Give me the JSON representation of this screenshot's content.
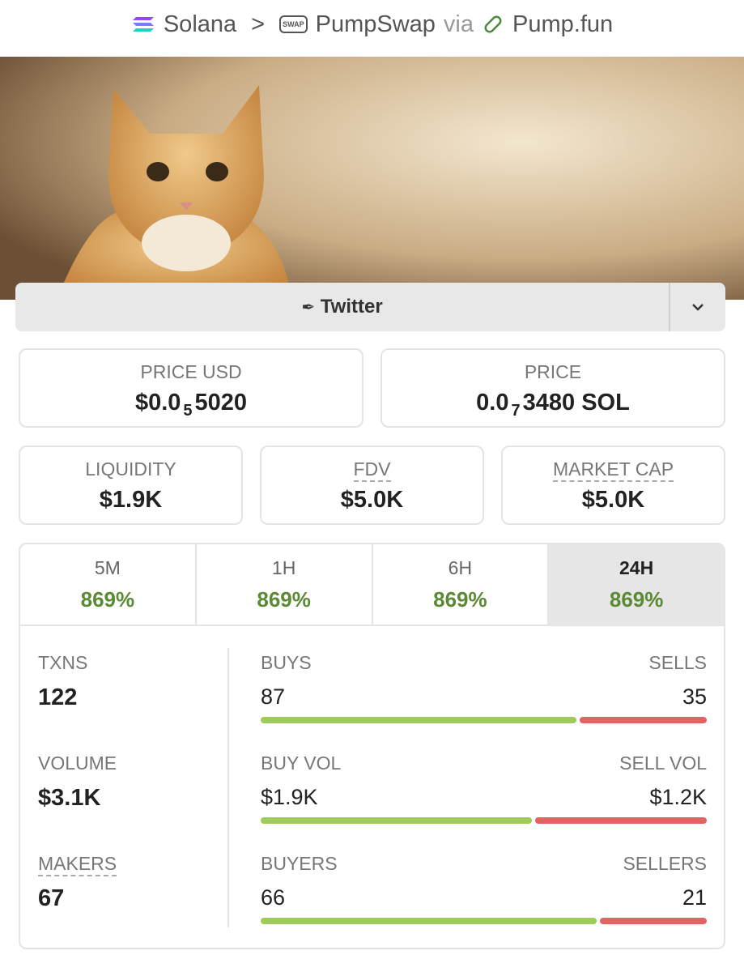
{
  "breadcrumb": {
    "chain": "Solana",
    "separator": ">",
    "dex_icon_text": "SWAP",
    "dex": "PumpSwap",
    "via": "via",
    "launchpad": "Pump.fun"
  },
  "link_button": "Twitter",
  "price_usd": {
    "label": "PRICE USD",
    "prefix": "$0.0",
    "zeros": "5",
    "digits": "5020"
  },
  "price_native": {
    "label": "PRICE",
    "prefix": "0.0",
    "zeros": "7",
    "digits": "3480 SOL"
  },
  "stats": [
    {
      "label": "LIQUIDITY",
      "value": "$1.9K"
    },
    {
      "label": "FDV",
      "value": "$5.0K"
    },
    {
      "label": "MARKET CAP",
      "value": "$5.0K"
    }
  ],
  "tabs": [
    {
      "label": "5M",
      "change": "869%"
    },
    {
      "label": "1H",
      "change": "869%"
    },
    {
      "label": "6H",
      "change": "869%"
    },
    {
      "label": "24H",
      "change": "869%"
    }
  ],
  "active_tab": 3,
  "txns": {
    "label": "TXNS",
    "value": 122,
    "buys_label": "BUYS",
    "buys": 87,
    "sells_label": "SELLS",
    "sells": 35
  },
  "volume": {
    "label": "VOLUME",
    "value": "$3.1K",
    "buy_label": "BUY VOL",
    "buy": {
      "value": 1900,
      "label": "$1.9K"
    },
    "sell_label": "SELL VOL",
    "sell": {
      "value": 1200,
      "label": "$1.2K"
    }
  },
  "makers": {
    "label": "MAKERS",
    "value": 67,
    "buyers_label": "BUYERS",
    "buyers": 66,
    "sellers_label": "SELLERS",
    "sellers": 21
  }
}
